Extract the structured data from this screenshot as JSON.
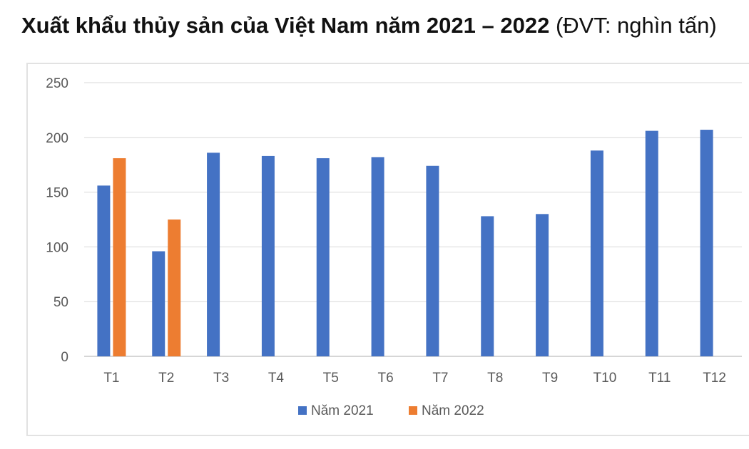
{
  "title": {
    "main": "Xuất khẩu thủy sản của Việt Nam năm 2021 – 2022",
    "unit": " (ĐVT: nghìn tấn)"
  },
  "chart_data": {
    "type": "bar",
    "title": "Xuất khẩu thủy sản của Việt Nam năm 2021 – 2022",
    "unit": "ĐVT: nghìn tấn",
    "categories": [
      "T1",
      "T2",
      "T3",
      "T4",
      "T5",
      "T6",
      "T7",
      "T8",
      "T9",
      "T10",
      "T11",
      "T12"
    ],
    "series": [
      {
        "name": "Năm 2021",
        "color": "#4472c4",
        "values": [
          156,
          96,
          186,
          183,
          181,
          182,
          174,
          128,
          130,
          188,
          206,
          207
        ]
      },
      {
        "name": "Năm 2022",
        "color": "#ed7d31",
        "values": [
          181,
          125,
          null,
          null,
          null,
          null,
          null,
          null,
          null,
          null,
          null,
          null
        ]
      }
    ],
    "ylim": [
      0,
      250
    ],
    "yticks": [
      0,
      50,
      100,
      150,
      200,
      250
    ],
    "grid": true,
    "legend_position": "bottom"
  }
}
